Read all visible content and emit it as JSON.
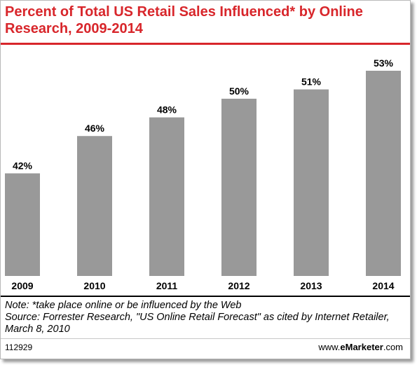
{
  "title": "Percent of Total US Retail Sales Influenced* by Online Research, 2009-2014",
  "note": "Note: *take place online or be influenced by the Web",
  "source": "Source: Forrester Research, \"US Online Retail Forecast\" as cited by Internet Retailer, March 8, 2010",
  "chart_id": "112929",
  "brand": {
    "prefix": "www.",
    "name": "eMarketer",
    "suffix": ".com"
  },
  "colors": {
    "title": "#d8262b",
    "bar": "#999999",
    "text": "#000000"
  },
  "chart_data": {
    "type": "bar",
    "title": "Percent of Total US Retail Sales Influenced* by Online Research, 2009-2014",
    "categories": [
      "2009",
      "2010",
      "2011",
      "2012",
      "2013",
      "2014"
    ],
    "values": [
      42,
      46,
      48,
      50,
      51,
      53
    ],
    "data_labels": [
      "42%",
      "46%",
      "48%",
      "50%",
      "51%",
      "53%"
    ],
    "unit": "%",
    "ylim": [
      31,
      53
    ],
    "grid": false,
    "legend": "none"
  }
}
